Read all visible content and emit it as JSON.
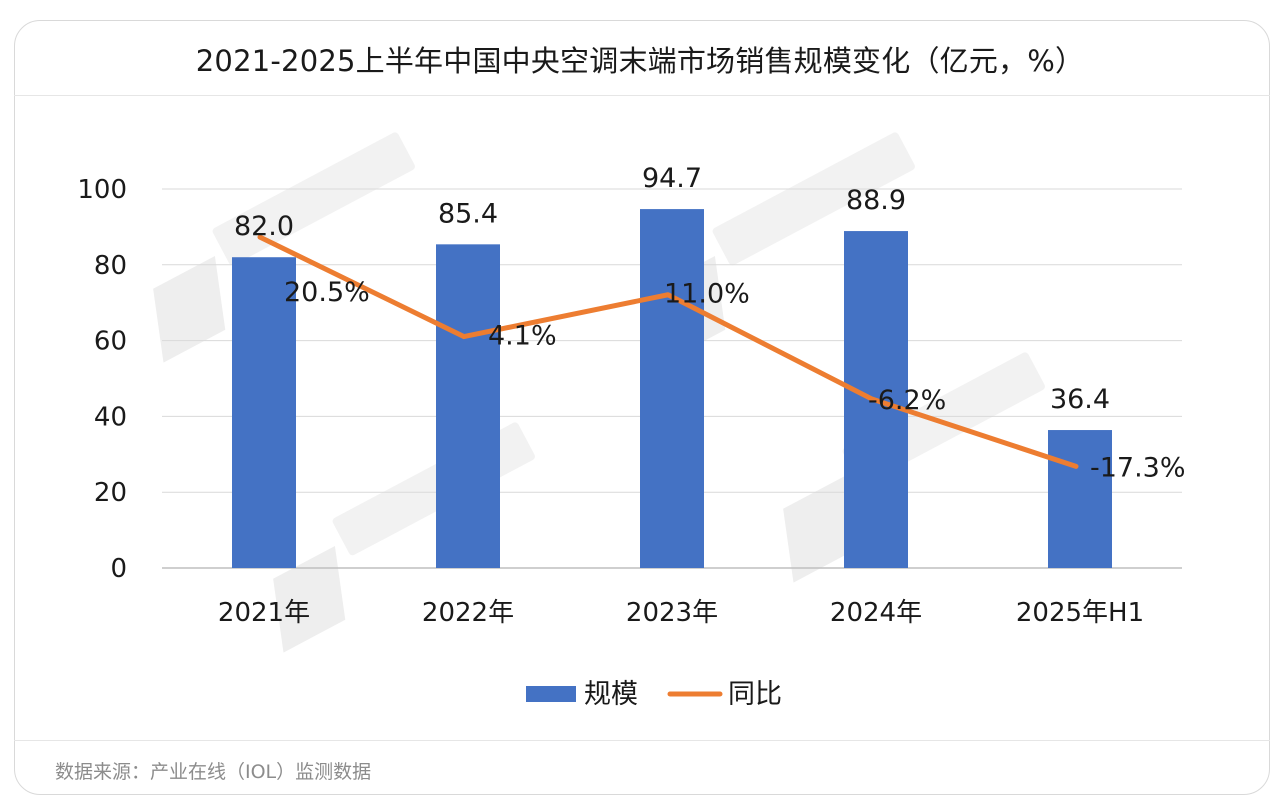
{
  "title": "2021-2025上半年中国中央空调末端市场销售规模变化（亿元，%）",
  "source": "数据来源：产业在线（IOL）监测数据",
  "colors": {
    "bar": "#4472C4",
    "line": "#ED7D31",
    "grid": "#d9d9d9"
  },
  "chart_data": {
    "type": "bar",
    "categories": [
      "2021年",
      "2022年",
      "2023年",
      "2024年",
      "2025年H1"
    ],
    "ylim": [
      0,
      100
    ],
    "yticks": [
      0,
      20,
      40,
      60,
      80,
      100
    ],
    "grid": true,
    "legend_position": "bottom",
    "series": [
      {
        "name": "规模",
        "kind": "bar",
        "values": [
          82.0,
          85.4,
          94.7,
          88.9,
          36.4
        ],
        "labels": [
          "82.0",
          "85.4",
          "94.7",
          "88.9",
          "36.4"
        ]
      },
      {
        "name": "同比",
        "kind": "line",
        "values": [
          20.5,
          4.1,
          11.0,
          -6.2,
          -17.3
        ],
        "labels": [
          "20.5%",
          "4.1%",
          "11.0%",
          "-6.2%",
          "-17.3%"
        ]
      }
    ]
  }
}
